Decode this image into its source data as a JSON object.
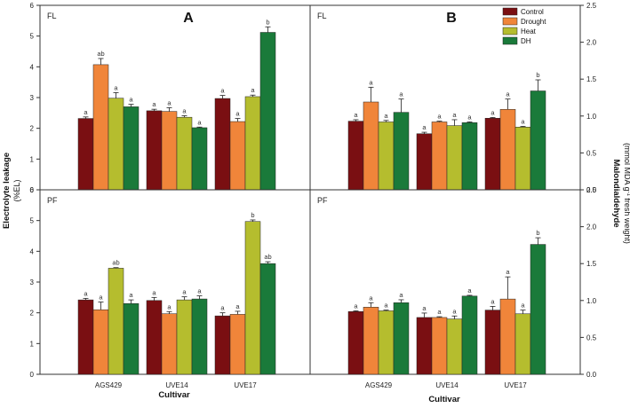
{
  "colors": {
    "Control": "#7a0f12",
    "Drought": "#f0853a",
    "Heat": "#b5bd2e",
    "DH": "#1a7a3a"
  },
  "legend": [
    "Control",
    "Drought",
    "Heat",
    "DH"
  ],
  "labels": {
    "left_ylabel_1": "Electrolyte leakage",
    "left_ylabel_2": "(%EL)",
    "right_ylabel_1": "Malondialdehyde",
    "right_ylabel_2": "(mmol MDA g",
    "right_ylabel_sup": "-1",
    "right_ylabel_3": " fresh weight)",
    "xlabel_left": "Cultivar",
    "xlabel_right": "Cultivar"
  },
  "chart_data": [
    {
      "type": "bar",
      "panel": "A",
      "tag": "FL",
      "letter": "A",
      "categories": [
        "AGS429",
        "UVE14",
        "UVE17"
      ],
      "ylim": [
        0,
        6
      ],
      "yticks": [
        "0",
        "1",
        "2",
        "3",
        "4",
        "5",
        "6"
      ],
      "ylabel": "Electrolyte leakage (%EL)",
      "series": [
        {
          "name": "Control",
          "values": [
            2.32,
            2.57,
            2.97
          ],
          "errors": [
            0.05,
            0.05,
            0.1
          ],
          "letters": [
            "a",
            "a",
            "a"
          ]
        },
        {
          "name": "Drought",
          "values": [
            4.07,
            2.55,
            2.22
          ],
          "errors": [
            0.2,
            0.12,
            0.1
          ],
          "letters": [
            "ab",
            "a",
            "a"
          ]
        },
        {
          "name": "Heat",
          "values": [
            2.98,
            2.36,
            3.03
          ],
          "errors": [
            0.18,
            0.05,
            0.05
          ],
          "letters": [
            "a",
            "a",
            "a"
          ]
        },
        {
          "name": "DH",
          "values": [
            2.7,
            2.02,
            5.12
          ],
          "errors": [
            0.08,
            0.02,
            0.18
          ],
          "letters": [
            "a",
            "a",
            "b"
          ]
        }
      ]
    },
    {
      "type": "bar",
      "panel": "B",
      "tag": "FL",
      "letter": "B",
      "categories": [
        "AGS429",
        "UVE14",
        "UVE17"
      ],
      "ylim": [
        0,
        2.5
      ],
      "yticks": [
        "0.0",
        "0.5",
        "1.0",
        "1.5",
        "2.0",
        "2.5"
      ],
      "ylabel": "Malondialdehyde (mmol MDA g-1 fresh weight)",
      "series": [
        {
          "name": "Control",
          "values": [
            0.93,
            0.76,
            0.97
          ],
          "errors": [
            0.02,
            0.02,
            0.01
          ],
          "letters": [
            "a",
            "a",
            "a"
          ]
        },
        {
          "name": "Drought",
          "values": [
            1.19,
            0.92,
            1.09
          ],
          "errors": [
            0.2,
            0.01,
            0.14
          ],
          "letters": [
            "a",
            "a",
            "a"
          ]
        },
        {
          "name": "Heat",
          "values": [
            0.92,
            0.87,
            0.85
          ],
          "errors": [
            0.02,
            0.08,
            0.01
          ],
          "letters": [
            "a",
            "a",
            "a"
          ]
        },
        {
          "name": "DH",
          "values": [
            1.05,
            0.91,
            1.34
          ],
          "errors": [
            0.18,
            0.01,
            0.15
          ],
          "letters": [
            "a",
            "a",
            "b"
          ]
        }
      ]
    },
    {
      "type": "bar",
      "panel": "C",
      "tag": "PF",
      "letter": "",
      "categories": [
        "AGS429",
        "UVE14",
        "UVE17"
      ],
      "ylim": [
        0,
        6
      ],
      "yticks": [
        "0",
        "1",
        "2",
        "3",
        "4",
        "5",
        "6"
      ],
      "ylabel": "Electrolyte leakage (%EL)",
      "series": [
        {
          "name": "Control",
          "values": [
            2.42,
            2.4,
            1.9
          ],
          "errors": [
            0.05,
            0.1,
            0.1
          ],
          "letters": [
            "a",
            "a",
            "a"
          ]
        },
        {
          "name": "Drought",
          "values": [
            2.1,
            1.97,
            1.95
          ],
          "errors": [
            0.25,
            0.07,
            0.1
          ],
          "letters": [
            "a",
            "a",
            "a"
          ]
        },
        {
          "name": "Heat",
          "values": [
            3.45,
            2.42,
            4.97
          ],
          "errors": [
            0.02,
            0.1,
            0.05
          ],
          "letters": [
            "ab",
            "a",
            "b"
          ]
        },
        {
          "name": "DH",
          "values": [
            2.3,
            2.45,
            3.6
          ],
          "errors": [
            0.12,
            0.1,
            0.06
          ],
          "letters": [
            "a",
            "a",
            "ab"
          ]
        }
      ]
    },
    {
      "type": "bar",
      "panel": "D",
      "tag": "PF",
      "letter": "",
      "categories": [
        "AGS429",
        "UVE14",
        "UVE17"
      ],
      "ylim": [
        0,
        2.5
      ],
      "yticks": [
        "0.0",
        "0.5",
        "1.0",
        "1.5",
        "2.0",
        "2.5"
      ],
      "ylabel": "Malondialdehyde (mmol MDA g-1 fresh weight)",
      "series": [
        {
          "name": "Control",
          "values": [
            0.85,
            0.77,
            0.87
          ],
          "errors": [
            0.01,
            0.06,
            0.05
          ],
          "letters": [
            "a",
            "a",
            "a"
          ]
        },
        {
          "name": "Drought",
          "values": [
            0.91,
            0.77,
            1.02
          ],
          "errors": [
            0.06,
            0.01,
            0.3
          ],
          "letters": [
            "a",
            "a",
            "a"
          ]
        },
        {
          "name": "Heat",
          "values": [
            0.86,
            0.75,
            0.82
          ],
          "errors": [
            0.01,
            0.04,
            0.05
          ],
          "letters": [
            "a",
            "a",
            "a"
          ]
        },
        {
          "name": "DH",
          "values": [
            0.97,
            1.06,
            1.76
          ],
          "errors": [
            0.04,
            0.01,
            0.09
          ],
          "letters": [
            "a",
            "a",
            "b"
          ]
        }
      ]
    }
  ]
}
